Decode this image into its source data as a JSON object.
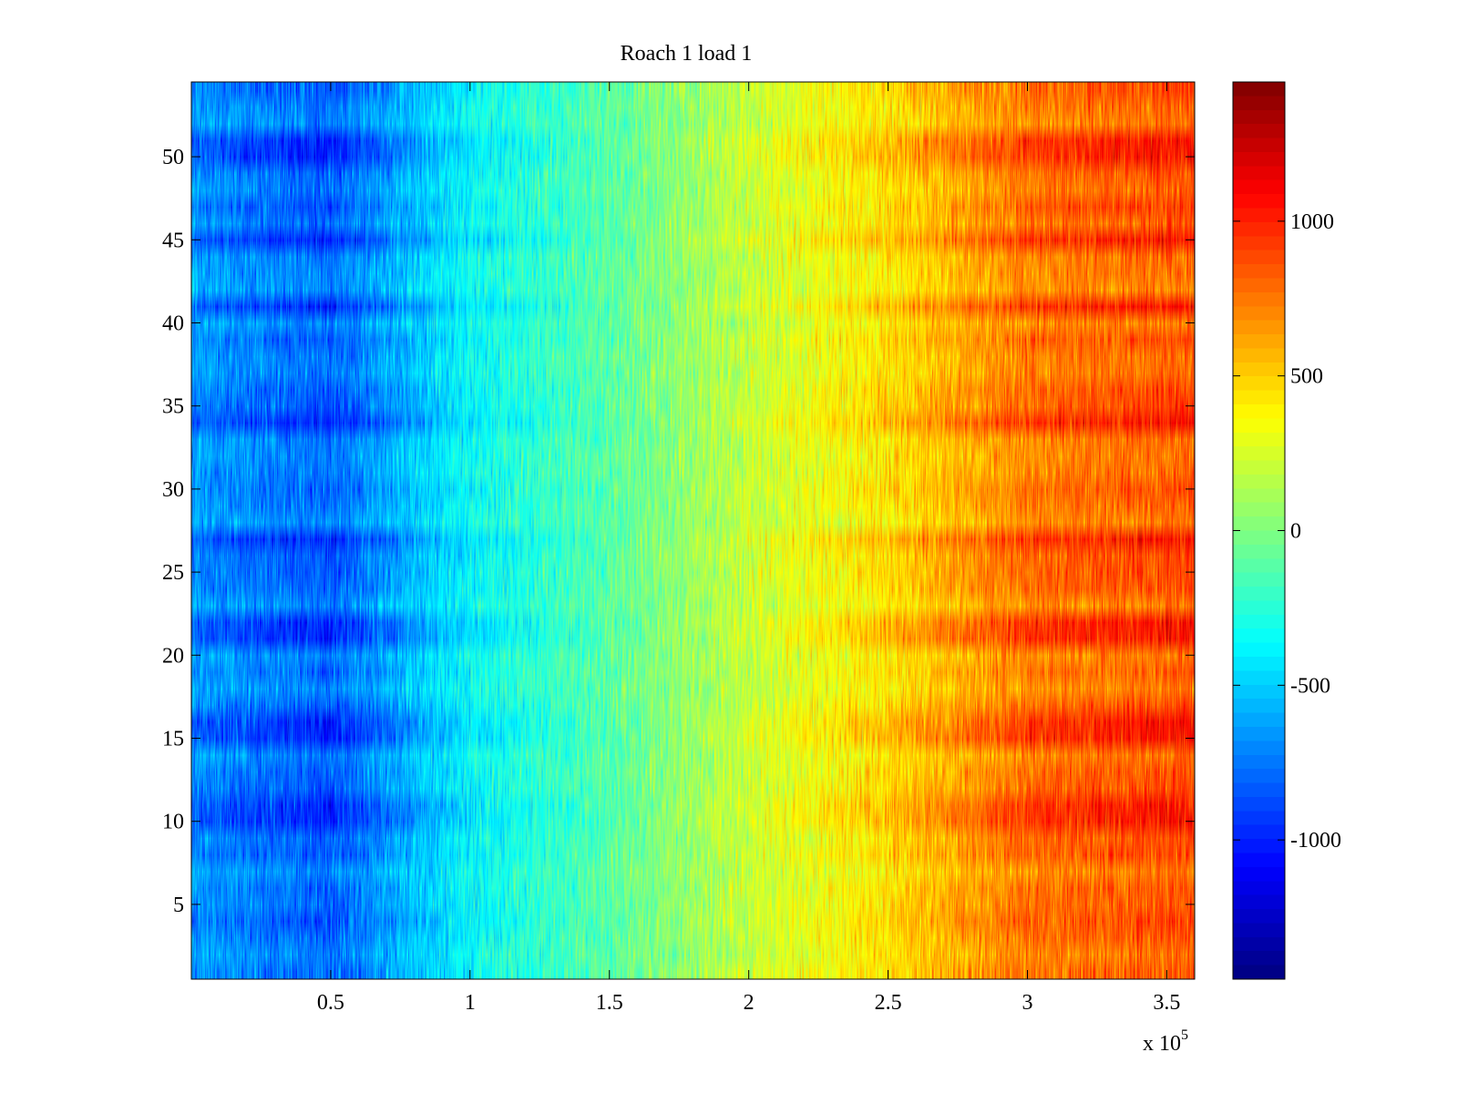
{
  "chart_data": {
    "type": "heatmap",
    "title": "Roach 1 load 1",
    "xlabel": "",
    "ylabel": "",
    "x_multiplier_label": "x 10",
    "x_multiplier_exponent": "5",
    "x_range": [
      0,
      360000
    ],
    "y_range": [
      0.5,
      54.5
    ],
    "rows": 54,
    "x_ticks": [
      {
        "value": 50000,
        "label": "0.5"
      },
      {
        "value": 100000,
        "label": "1"
      },
      {
        "value": 150000,
        "label": "1.5"
      },
      {
        "value": 200000,
        "label": "2"
      },
      {
        "value": 250000,
        "label": "2.5"
      },
      {
        "value": 300000,
        "label": "3"
      },
      {
        "value": 350000,
        "label": "3.5"
      }
    ],
    "y_ticks": [
      {
        "value": 5,
        "label": "5"
      },
      {
        "value": 10,
        "label": "10"
      },
      {
        "value": 15,
        "label": "15"
      },
      {
        "value": 20,
        "label": "20"
      },
      {
        "value": 25,
        "label": "25"
      },
      {
        "value": 30,
        "label": "30"
      },
      {
        "value": 35,
        "label": "35"
      },
      {
        "value": 40,
        "label": "40"
      },
      {
        "value": 45,
        "label": "45"
      },
      {
        "value": 50,
        "label": "50"
      }
    ],
    "colorbar": {
      "colormap": "jet",
      "range": [
        -1450,
        1450
      ],
      "ticks": [
        {
          "value": -1000,
          "label": "-1000"
        },
        {
          "value": -500,
          "label": "-500"
        },
        {
          "value": 0,
          "label": "0"
        },
        {
          "value": 500,
          "label": "500"
        },
        {
          "value": 1000,
          "label": "1000"
        }
      ]
    },
    "trend": {
      "description_values_at_x": [
        {
          "x": 0,
          "value": -650
        },
        {
          "x": 50000,
          "value": -800
        },
        {
          "x": 100000,
          "value": -350
        },
        {
          "x": 150000,
          "value": -100
        },
        {
          "x": 200000,
          "value": 200
        },
        {
          "x": 250000,
          "value": 450
        },
        {
          "x": 300000,
          "value": 750
        },
        {
          "x": 360000,
          "value": 850
        }
      ],
      "noise_amplitude": 300,
      "strong_rows": [
        10,
        11,
        15,
        16,
        21,
        22,
        27,
        34,
        41,
        45,
        50,
        51
      ]
    }
  }
}
